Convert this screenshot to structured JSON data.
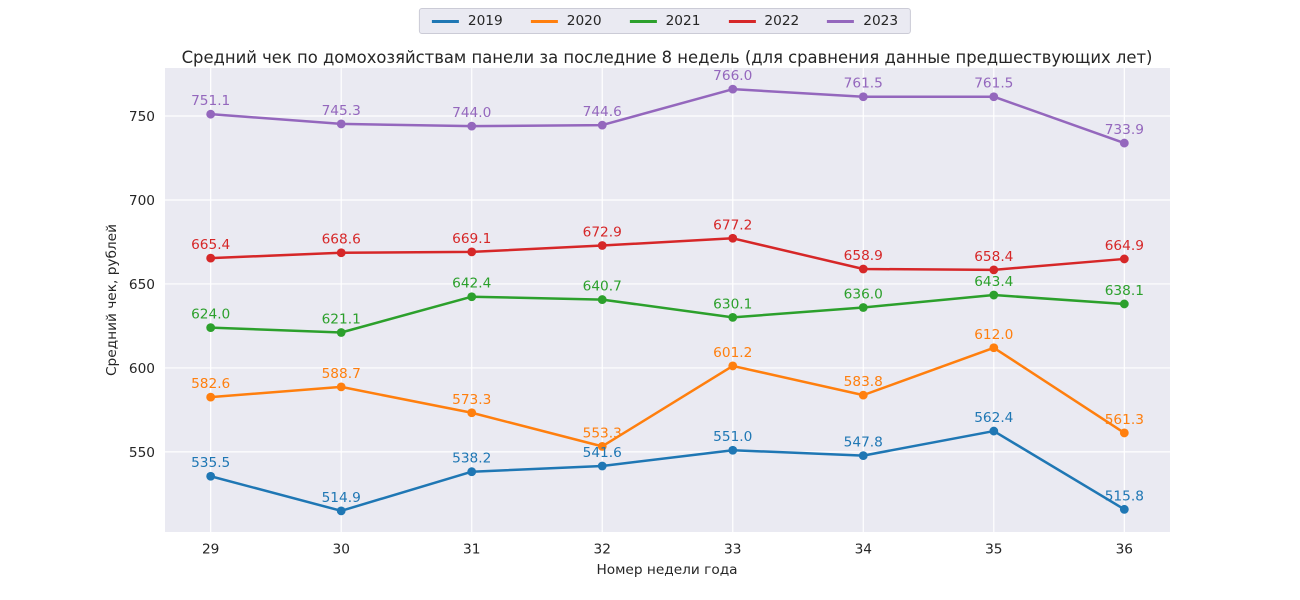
{
  "chart_data": {
    "type": "line",
    "title": "Средний чек по домохозяйствам панели за последние 8 недель (для сравнения данные предшествующих лет)",
    "xlabel": "Номер недели года",
    "ylabel": "Средний чек, рублей",
    "categories": [
      29,
      30,
      31,
      32,
      33,
      34,
      35,
      36
    ],
    "yticks": [
      550,
      600,
      650,
      700,
      750
    ],
    "ylim": [
      502.3,
      778.6
    ],
    "x_margin": 0.35,
    "grid": true,
    "legend_position": "top-center-outside",
    "style": {
      "plot_bg": "#eaeaf2",
      "grid_color": "#ffffff",
      "text_color": "#262626",
      "figure_bg": "#ffffff"
    },
    "series": [
      {
        "name": "2019",
        "color": "#1f77b4",
        "values": [
          535.5,
          514.9,
          538.2,
          541.6,
          551.0,
          547.8,
          562.4,
          515.8
        ]
      },
      {
        "name": "2020",
        "color": "#ff7f0e",
        "values": [
          582.6,
          588.7,
          573.3,
          553.3,
          601.2,
          583.8,
          612.0,
          561.3
        ]
      },
      {
        "name": "2021",
        "color": "#2ca02c",
        "values": [
          624.0,
          621.1,
          642.4,
          640.7,
          630.1,
          636.0,
          643.4,
          638.1
        ]
      },
      {
        "name": "2022",
        "color": "#d62728",
        "values": [
          665.4,
          668.6,
          669.1,
          672.9,
          677.2,
          658.9,
          658.4,
          664.9
        ]
      },
      {
        "name": "2023",
        "color": "#9467bd",
        "values": [
          751.1,
          745.3,
          744.0,
          744.6,
          766.0,
          761.5,
          761.5,
          733.9
        ]
      }
    ]
  }
}
